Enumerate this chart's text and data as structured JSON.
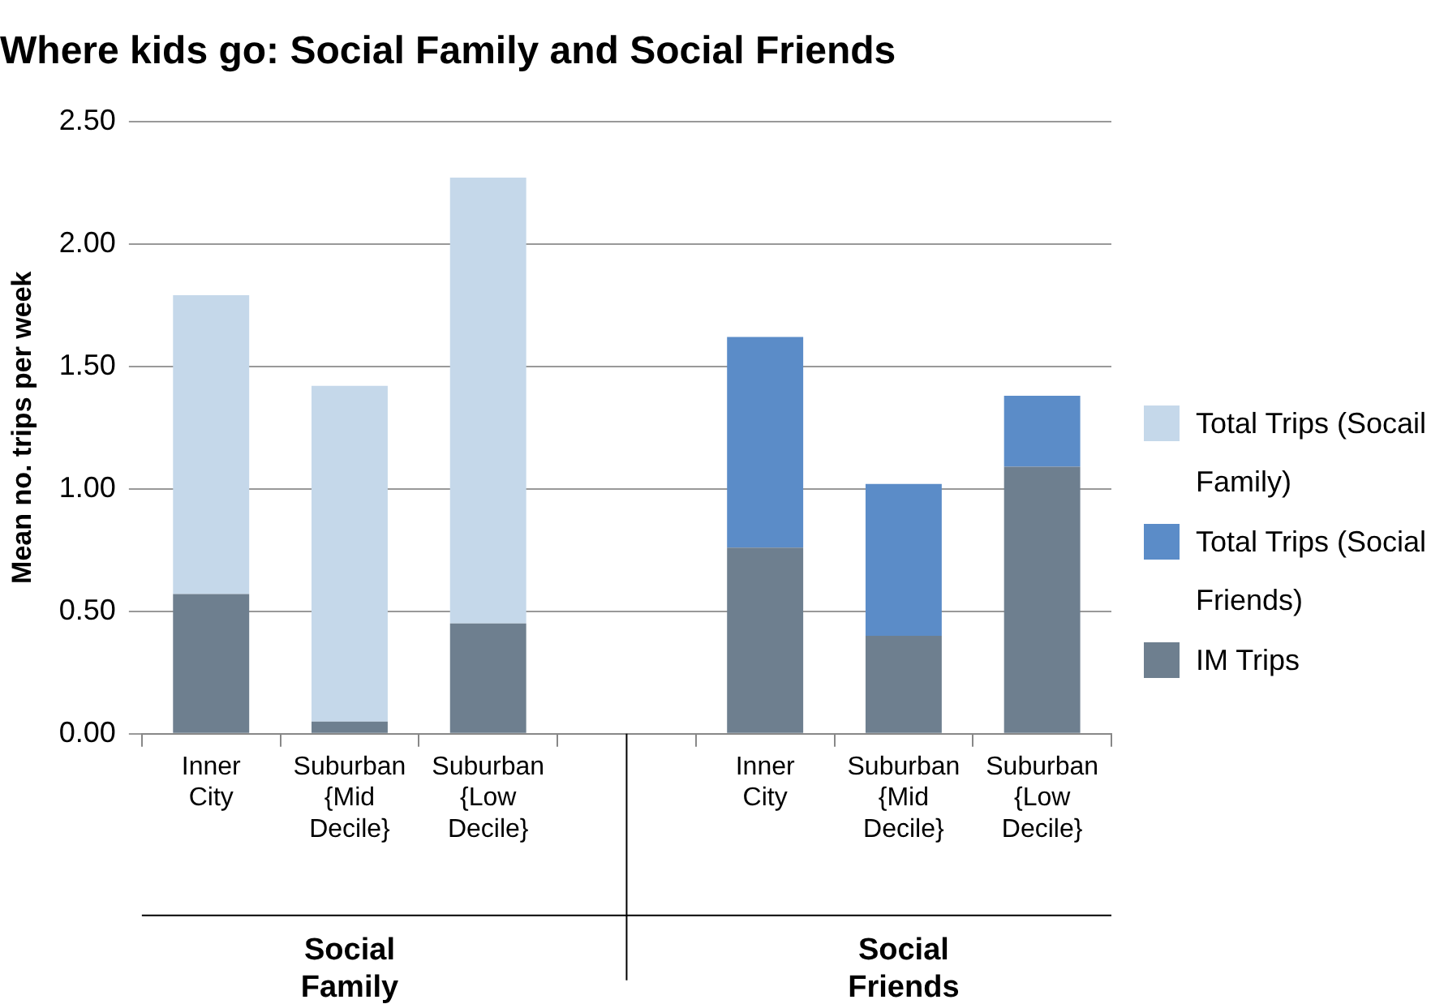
{
  "chart_data": {
    "type": "bar",
    "stacked": true,
    "title": "Where kids go: Social Family and Social Friends",
    "ylabel": "Mean no. trips per week",
    "categories": [
      "Inner City",
      "Suburban {Mid Decile}",
      "Suburban {Low Decile}",
      null,
      "Inner City",
      "Suburban {Mid Decile}",
      "Suburban {Low Decile}"
    ],
    "series": [
      {
        "name": "IM Trips",
        "color": "#6e7f8f",
        "values": [
          0.57,
          0.05,
          0.45,
          null,
          0.76,
          0.4,
          1.09
        ]
      },
      {
        "name": "Total Trips (Socail Family)",
        "color": "#c5d8ea",
        "values": [
          1.22,
          1.37,
          1.82,
          null,
          null,
          null,
          null
        ]
      },
      {
        "name": "Total Trips (Social Friends)",
        "color": "#5b8cc8",
        "values": [
          null,
          null,
          null,
          null,
          0.86,
          0.62,
          0.29
        ]
      }
    ],
    "ylim": [
      0,
      2.5
    ],
    "yticks": [
      {
        "value": 0,
        "label": "0.00"
      },
      {
        "value": 0.5,
        "label": "0.50"
      },
      {
        "value": 1,
        "label": "1.00"
      },
      {
        "value": 1.5,
        "label": "1.50"
      },
      {
        "value": 2,
        "label": "2.00"
      },
      {
        "value": 2.5,
        "label": "2.50"
      }
    ],
    "grid": "y",
    "legend": "right",
    "annotations": [
      "Social Family",
      "Social Friends"
    ]
  }
}
